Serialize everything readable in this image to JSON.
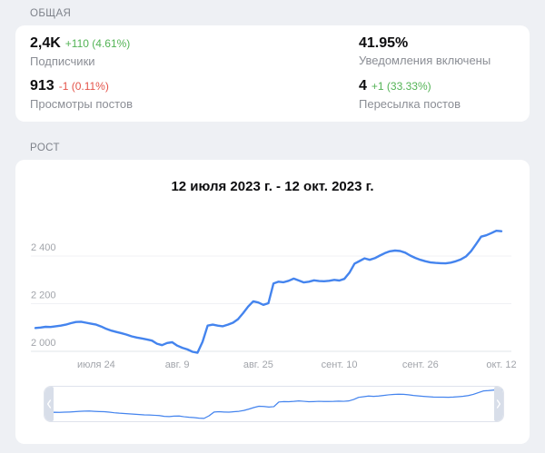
{
  "sections": {
    "overview_label": "ОБЩАЯ",
    "growth_label": "РОСТ"
  },
  "stats": [
    {
      "value": "2,4K",
      "delta": "+110 (4.61%)",
      "delta_color": "green",
      "label": "Подписчики"
    },
    {
      "value": "41.95%",
      "delta": "",
      "delta_color": "none",
      "label": "Уведомления включены"
    },
    {
      "value": "913",
      "delta": "-1 (0.11%)",
      "delta_color": "red",
      "label": "Просмотры постов"
    },
    {
      "value": "4",
      "delta": "+1 (33.33%)",
      "delta_color": "green",
      "label": "Пересылка постов"
    }
  ],
  "colors": {
    "accent_blue": "#4484ee",
    "positive_green": "#53b355",
    "negative_red": "#e45349",
    "grid_faint": "#f0f1f4",
    "grid_baseline": "#e2e4e8",
    "axis_text": "#a1a4aa",
    "handle_fill": "#d8dee9",
    "page_background": "#eef0f4"
  },
  "chart_data": {
    "type": "line",
    "title": "12 июля 2023 г. - 12 окт. 2023 г.",
    "x_start_label": "12 июля 2023 г.",
    "x_end_label": "12 окт. 2023 г.",
    "legend": "none",
    "grid": "horizontal",
    "ylim": [
      1940,
      2560
    ],
    "y_ticks": [
      {
        "value": 2000,
        "label": "2 000"
      },
      {
        "value": 2200,
        "label": "2 200"
      },
      {
        "value": 2400,
        "label": "2 400"
      }
    ],
    "x_ticks": [
      {
        "index": 12,
        "label": "июля 24"
      },
      {
        "index": 28,
        "label": "авг. 9"
      },
      {
        "index": 44,
        "label": "авг. 25"
      },
      {
        "index": 60,
        "label": "сент. 10"
      },
      {
        "index": 76,
        "label": "сент. 26"
      },
      {
        "index": 92,
        "label": "окт. 12"
      }
    ],
    "series": [
      {
        "name": "Подписчики",
        "color": "#4484ee",
        "values": [
          2098,
          2100,
          2103,
          2102,
          2105,
          2108,
          2112,
          2118,
          2123,
          2124,
          2120,
          2116,
          2112,
          2104,
          2094,
          2087,
          2081,
          2076,
          2070,
          2063,
          2058,
          2054,
          2050,
          2045,
          2032,
          2026,
          2035,
          2038,
          2024,
          2015,
          2008,
          1998,
          1994,
          2040,
          2108,
          2112,
          2108,
          2105,
          2112,
          2120,
          2135,
          2160,
          2188,
          2210,
          2205,
          2195,
          2202,
          2285,
          2292,
          2290,
          2296,
          2305,
          2297,
          2289,
          2292,
          2298,
          2295,
          2294,
          2296,
          2300,
          2297,
          2304,
          2330,
          2368,
          2379,
          2390,
          2384,
          2391,
          2402,
          2412,
          2420,
          2423,
          2421,
          2414,
          2402,
          2392,
          2384,
          2378,
          2373,
          2371,
          2370,
          2369,
          2372,
          2378,
          2386,
          2398,
          2420,
          2450,
          2481,
          2487,
          2496,
          2506,
          2504
        ]
      }
    ],
    "minimap": true
  }
}
